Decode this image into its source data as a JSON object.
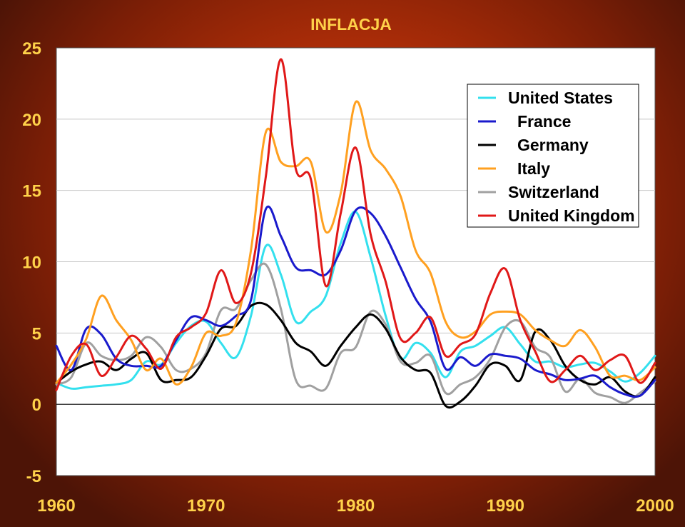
{
  "chart_data": {
    "type": "line",
    "title": "INFLACJA",
    "xlim": [
      1960,
      2000
    ],
    "ylim": [
      -5,
      25
    ],
    "xticks": [
      "1960",
      "1970",
      "1980",
      "1990",
      "2000"
    ],
    "yticks": [
      "25",
      "20",
      "15",
      "10",
      "5",
      "0",
      "-5"
    ],
    "grid": "horizontal",
    "legend_position": "top-right",
    "x": [
      1960,
      1961,
      1962,
      1963,
      1964,
      1965,
      1966,
      1967,
      1968,
      1969,
      1970,
      1971,
      1972,
      1973,
      1974,
      1975,
      1976,
      1977,
      1978,
      1979,
      1980,
      1981,
      1982,
      1983,
      1984,
      1985,
      1986,
      1987,
      1988,
      1989,
      1990,
      1991,
      1992,
      1993,
      1994,
      1995,
      1996,
      1997,
      1998,
      1999,
      2000
    ],
    "series": [
      {
        "name": "United States",
        "color": "#33e0ee",
        "values": [
          1.5,
          1.1,
          1.2,
          1.3,
          1.4,
          1.7,
          3.0,
          2.8,
          4.3,
          5.5,
          5.8,
          4.3,
          3.3,
          6.2,
          11.1,
          9.1,
          5.8,
          6.5,
          7.6,
          11.3,
          13.5,
          10.3,
          6.2,
          3.2,
          4.3,
          3.6,
          1.9,
          3.7,
          4.1,
          4.8,
          5.4,
          4.2,
          3.0,
          3.0,
          2.6,
          2.8,
          2.9,
          2.3,
          1.6,
          2.2,
          3.4
        ]
      },
      {
        "name": "France",
        "color": "#1a1acc",
        "values": [
          4.1,
          2.4,
          5.3,
          4.9,
          3.2,
          2.7,
          2.7,
          2.7,
          4.5,
          6.1,
          5.9,
          5.5,
          6.2,
          7.3,
          13.7,
          11.8,
          9.6,
          9.4,
          9.1,
          10.8,
          13.6,
          13.4,
          11.8,
          9.6,
          7.4,
          5.8,
          2.5,
          3.3,
          2.7,
          3.5,
          3.4,
          3.2,
          2.4,
          2.1,
          1.7,
          1.8,
          2.0,
          1.2,
          0.7,
          0.6,
          1.7
        ]
      },
      {
        "name": "Germany",
        "color": "#000000",
        "values": [
          1.5,
          2.3,
          2.8,
          3.0,
          2.4,
          3.2,
          3.6,
          1.7,
          1.7,
          1.9,
          3.4,
          5.3,
          5.5,
          6.9,
          7.0,
          5.9,
          4.3,
          3.7,
          2.7,
          4.1,
          5.4,
          6.3,
          5.3,
          3.3,
          2.4,
          2.2,
          -0.1,
          0.2,
          1.3,
          2.8,
          2.7,
          1.7,
          5.1,
          4.5,
          2.7,
          1.7,
          1.4,
          1.9,
          0.9,
          0.6,
          1.9
        ]
      },
      {
        "name": "Italy",
        "color": "#ffa020",
        "values": [
          1.5,
          2.8,
          4.6,
          7.6,
          5.9,
          4.5,
          2.4,
          3.2,
          1.4,
          2.6,
          5.0,
          4.8,
          5.7,
          10.8,
          19.1,
          17.0,
          16.7,
          17.0,
          12.1,
          14.8,
          21.2,
          17.8,
          16.5,
          14.6,
          10.8,
          9.2,
          5.8,
          4.7,
          5.1,
          6.3,
          6.5,
          6.3,
          5.2,
          4.5,
          4.1,
          5.2,
          4.0,
          2.0,
          2.0,
          1.7,
          2.6
        ]
      },
      {
        "name": "Switzerland",
        "color": "#a0a0a0",
        "values": [
          1.4,
          1.9,
          4.3,
          3.4,
          3.1,
          3.4,
          4.7,
          4.0,
          2.4,
          2.5,
          3.6,
          6.6,
          6.7,
          8.7,
          9.8,
          6.7,
          1.7,
          1.3,
          1.1,
          3.6,
          4.0,
          6.5,
          5.6,
          3.0,
          2.9,
          3.4,
          0.8,
          1.4,
          1.9,
          3.2,
          5.4,
          5.8,
          4.0,
          3.3,
          0.9,
          1.8,
          0.8,
          0.5,
          0.1,
          0.8,
          1.6
        ]
      },
      {
        "name": "United Kingdom",
        "color": "#e01818",
        "values": [
          1.0,
          3.4,
          4.2,
          2.0,
          3.3,
          4.8,
          3.9,
          2.5,
          4.7,
          5.4,
          6.4,
          9.4,
          7.1,
          9.2,
          16.0,
          24.2,
          16.5,
          15.8,
          8.3,
          13.4,
          18.0,
          11.9,
          8.6,
          4.6,
          5.0,
          6.1,
          3.4,
          4.2,
          4.9,
          7.8,
          9.5,
          5.9,
          3.7,
          1.6,
          2.4,
          3.4,
          2.4,
          3.1,
          3.4,
          1.5,
          2.9
        ]
      }
    ]
  }
}
